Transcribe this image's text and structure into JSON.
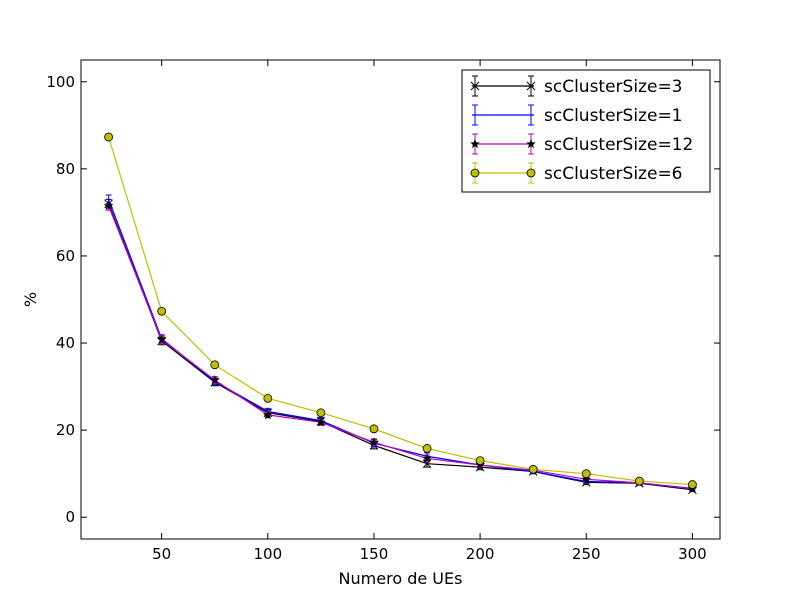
{
  "chart_data": {
    "type": "line",
    "xlabel": "Numero de UEs",
    "ylabel": "%",
    "xlim": [
      12,
      313
    ],
    "ylim": [
      -5,
      105
    ],
    "x_ticks": [
      50,
      100,
      150,
      200,
      250,
      300
    ],
    "y_ticks": [
      0,
      20,
      40,
      60,
      80,
      100
    ],
    "grid": false,
    "legend_position": "top-right",
    "x": [
      25,
      50,
      75,
      100,
      125,
      150,
      175,
      200,
      225,
      250,
      275,
      300
    ],
    "series": [
      {
        "name": "scClusterSize=3",
        "color": "#000000",
        "marker": "x",
        "values": [
          72.0,
          40.5,
          31.0,
          24.0,
          22.0,
          16.5,
          12.3,
          11.5,
          10.5,
          8.0,
          7.8,
          6.3
        ],
        "errors": [
          1.0,
          0.9,
          0.8,
          0.7,
          0.7,
          0.8,
          0.8,
          0.6,
          0.5,
          0.5,
          0.4,
          0.4
        ]
      },
      {
        "name": "scClusterSize=1",
        "color": "#0000ff",
        "marker": "none",
        "values": [
          73.0,
          41.0,
          31.2,
          24.3,
          22.2,
          17.0,
          14.0,
          12.0,
          10.5,
          8.2,
          7.9,
          6.6
        ],
        "errors": [
          1.0,
          0.9,
          0.8,
          0.7,
          0.7,
          0.8,
          0.8,
          0.6,
          0.5,
          0.5,
          0.4,
          0.4
        ]
      },
      {
        "name": "scClusterSize=12",
        "color": "#bf00bf",
        "marker": "star",
        "values": [
          71.5,
          40.8,
          31.5,
          23.5,
          21.8,
          17.2,
          13.5,
          12.0,
          10.8,
          8.7,
          7.9,
          6.5
        ],
        "errors": [
          1.0,
          0.9,
          0.8,
          0.7,
          0.7,
          0.8,
          0.8,
          0.6,
          0.5,
          0.5,
          0.4,
          0.4
        ]
      },
      {
        "name": "scClusterSize=6",
        "color": "#bfbf00",
        "marker": "circle",
        "values": [
          87.3,
          47.3,
          35.0,
          27.3,
          24.0,
          20.3,
          15.8,
          13.0,
          11.0,
          10.0,
          8.3,
          7.5
        ],
        "errors": [
          0.4,
          0.4,
          0.4,
          0.4,
          0.4,
          0.4,
          0.4,
          0.4,
          0.4,
          0.4,
          0.3,
          0.3
        ]
      }
    ]
  }
}
